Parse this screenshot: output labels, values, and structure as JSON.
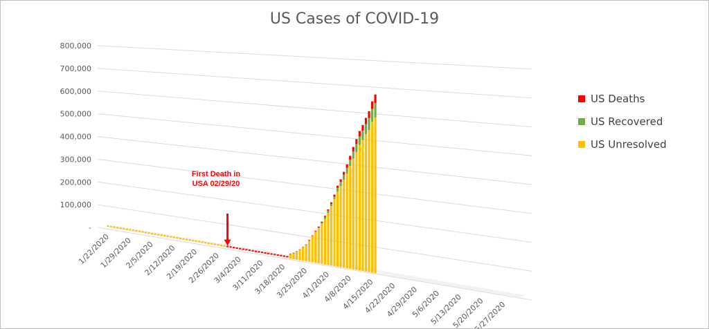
{
  "chart_data": {
    "type": "bar",
    "stacked": true,
    "title": "US Cases of COVID-19",
    "y_tick_labels": [
      "-",
      "100,000",
      "200,000",
      "300,000",
      "400,000",
      "500,000",
      "600,000",
      "700,000",
      "800,000"
    ],
    "ylim": [
      0,
      800000
    ],
    "x_tick_labels": [
      "1/22/2020",
      "1/29/2020",
      "2/5/2020",
      "2/12/2020",
      "2/19/2020",
      "2/26/2020",
      "3/4/2020",
      "3/11/2020",
      "3/18/2020",
      "3/25/2020",
      "4/1/2020",
      "4/8/2020",
      "4/15/2020",
      "4/22/2020",
      "4/29/2020",
      "5/6/2020",
      "5/13/2020",
      "5/20/2020",
      "5/27/2020"
    ],
    "x_range": [
      "1/22/2020",
      "6/1/2020"
    ],
    "grid": true,
    "legend_position": "right",
    "dates": [
      "3/20/2020",
      "3/21/2020",
      "3/22/2020",
      "3/23/2020",
      "3/24/2020",
      "3/25/2020",
      "3/26/2020",
      "3/27/2020",
      "3/28/2020",
      "3/29/2020",
      "3/30/2020",
      "3/31/2020",
      "4/1/2020",
      "4/2/2020",
      "4/3/2020",
      "4/4/2020",
      "4/5/2020",
      "4/6/2020",
      "4/7/2020",
      "4/8/2020",
      "4/9/2020",
      "4/10/2020",
      "4/11/2020",
      "4/12/2020",
      "4/13/2020",
      "4/14/2020",
      "4/15/2020",
      "4/16/2020"
    ],
    "series": [
      {
        "name": "US Deaths",
        "color": "#ff0000",
        "values": [
          250,
          340,
          470,
          640,
          900,
          1200,
          1600,
          2000,
          2500,
          3000,
          3500,
          4200,
          5100,
          6100,
          7200,
          8400,
          9600,
          10800,
          12900,
          14800,
          16700,
          18700,
          20500,
          22000,
          23500,
          26000,
          28300,
          32000
        ]
      },
      {
        "name": "US Recovered",
        "color": "#70ad47",
        "values": [
          150,
          200,
          300,
          400,
          550,
          700,
          900,
          1200,
          1700,
          2500,
          5000,
          7000,
          8700,
          9000,
          9700,
          14600,
          16700,
          19300,
          21800,
          24100,
          27000,
          30400,
          32100,
          34400,
          37900,
          45000,
          48700,
          55000
        ]
      },
      {
        "name": "US Unresolved",
        "color": "#ffc000",
        "values": [
          18800,
          24500,
          32500,
          41500,
          52500,
          64100,
          83500,
          101800,
          120800,
          137500,
          155500,
          177000,
          201200,
          228900,
          258100,
          288000,
          310700,
          336900,
          362300,
          392100,
          422300,
          447900,
          476400,
          496600,
          519600,
          536000,
          568000,
          585000
        ]
      }
    ],
    "annotation": {
      "text": "First Death in USA 02/29/20",
      "date": "2/29/2020"
    }
  }
}
